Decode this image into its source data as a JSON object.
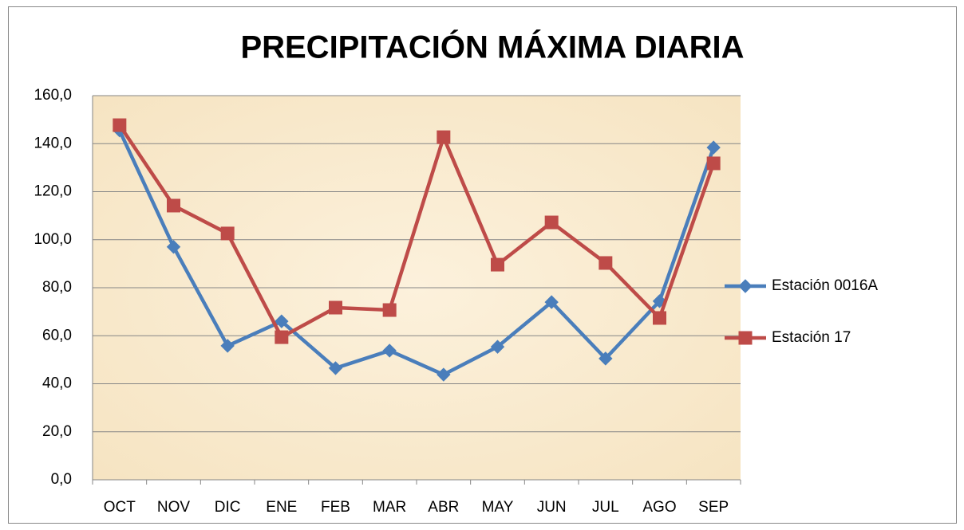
{
  "chart_data": {
    "type": "line",
    "title": "PRECIPITACIÓN MÁXIMA DIARIA",
    "categories": [
      "OCT",
      "NOV",
      "DIC",
      "ENE",
      "FEB",
      "MAR",
      "ABR",
      "MAY",
      "JUN",
      "JUL",
      "AGO",
      "SEP"
    ],
    "series": [
      {
        "name": "Estación 0016A",
        "color": "#4a7ebb",
        "marker": "diamond",
        "values": [
          145.5,
          97,
          55.8,
          66,
          46.5,
          53.8,
          43.8,
          55.4,
          74,
          50.5,
          74.4,
          138.4
        ]
      },
      {
        "name": "Estación 17",
        "color": "#be4b48",
        "marker": "square",
        "values": [
          147.7,
          114.2,
          102.6,
          59.4,
          71.7,
          70.7,
          142.7,
          89.6,
          107.2,
          90.3,
          67.4,
          131.8
        ]
      }
    ],
    "ylim": [
      0,
      160
    ],
    "yticks": [
      {
        "value": 0,
        "label": "0,0"
      },
      {
        "value": 20,
        "label": "20,0"
      },
      {
        "value": 40,
        "label": "40,0"
      },
      {
        "value": 60,
        "label": "60,0"
      },
      {
        "value": 80,
        "label": "80,0"
      },
      {
        "value": 100,
        "label": "100,0"
      },
      {
        "value": 120,
        "label": "120,0"
      },
      {
        "value": 140,
        "label": "140,0"
      },
      {
        "value": 160,
        "label": "160,0"
      }
    ],
    "grid": true,
    "legend": "right"
  }
}
